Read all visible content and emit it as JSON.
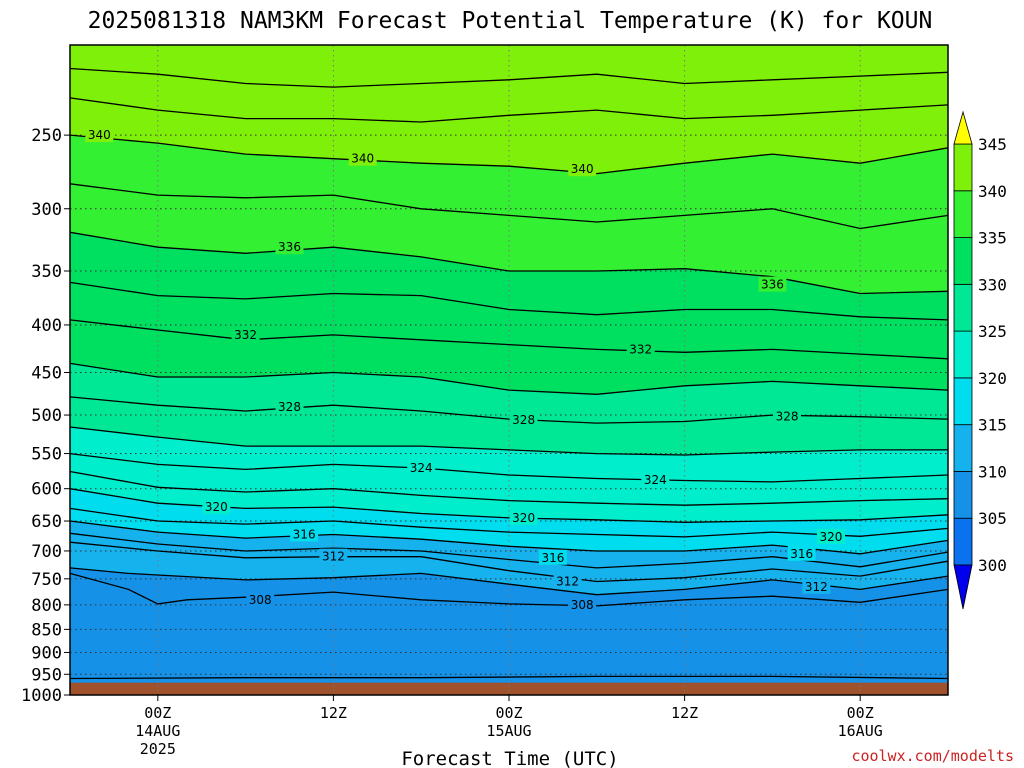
{
  "title": "2025081318 NAM3KM Forecast Potential Temperature (K) for KOUN",
  "credit": "coolwx.com/modelts",
  "colors": {
    "ground": "#a0522d",
    "levels": [
      "#0050ff",
      "#0a72ee",
      "#1592e8",
      "#16b2ee",
      "#00ddee",
      "#00eecc",
      "#00e895",
      "#00e060",
      "#33f033",
      "#7ef00a",
      "#aaff00",
      "#ffff00"
    ]
  },
  "chart_data": {
    "type": "heatmap",
    "title": "2025081318 NAM3KM Forecast Potential Temperature (K) for KOUN",
    "xlabel": "Forecast Time (UTC)",
    "ylabel": "",
    "x_unit": "forecast hour from 2025081318",
    "xlim": [
      0,
      60
    ],
    "ylim": [
      1000,
      200
    ],
    "y_scale": "log-pressure",
    "y_ticks": [
      "250",
      "300",
      "350",
      "400",
      "450",
      "500",
      "550",
      "600",
      "650",
      "700",
      "750",
      "800",
      "850",
      "900",
      "950",
      "1000"
    ],
    "x_ticks": [
      {
        "hour": 6,
        "label": "00Z",
        "date": "14AUG",
        "year": "2025"
      },
      {
        "hour": 18,
        "label": "12Z",
        "date": "",
        "year": ""
      },
      {
        "hour": 30,
        "label": "00Z",
        "date": "15AUG",
        "year": ""
      },
      {
        "hour": 42,
        "label": "12Z",
        "date": "",
        "year": ""
      },
      {
        "hour": 54,
        "label": "00Z",
        "date": "16AUG",
        "year": ""
      }
    ],
    "grid": true,
    "colorbar": {
      "levels": [
        300,
        305,
        310,
        315,
        320,
        325,
        330,
        335,
        340,
        345
      ],
      "labels": [
        "345",
        "340",
        "335",
        "330",
        "325",
        "320",
        "315",
        "310",
        "305",
        "300"
      ],
      "extend": "both",
      "placement": "right"
    },
    "contour_interval": 2,
    "ground_top_pressure": 970,
    "isentropes": [
      {
        "theta": 306,
        "points": [
          [
            0,
            960
          ],
          [
            12,
            958
          ],
          [
            24,
            958
          ],
          [
            36,
            955
          ],
          [
            48,
            955
          ],
          [
            60,
            960
          ]
        ]
      },
      {
        "theta": 308,
        "points": [
          [
            0,
            740
          ],
          [
            4,
            770
          ],
          [
            6,
            798
          ],
          [
            8,
            790
          ],
          [
            12,
            785
          ],
          [
            18,
            775
          ],
          [
            24,
            790
          ],
          [
            30,
            798
          ],
          [
            36,
            802
          ],
          [
            42,
            790
          ],
          [
            48,
            783
          ],
          [
            54,
            795
          ],
          [
            60,
            770
          ]
        ]
      },
      {
        "theta": 310,
        "points": [
          [
            0,
            730
          ],
          [
            4,
            740
          ],
          [
            12,
            752
          ],
          [
            18,
            748
          ],
          [
            24,
            740
          ],
          [
            30,
            760
          ],
          [
            36,
            780
          ],
          [
            42,
            770
          ],
          [
            48,
            752
          ],
          [
            54,
            770
          ],
          [
            60,
            745
          ]
        ]
      },
      {
        "theta": 312,
        "points": [
          [
            0,
            685
          ],
          [
            6,
            700
          ],
          [
            12,
            712
          ],
          [
            18,
            710
          ],
          [
            24,
            710
          ],
          [
            30,
            735
          ],
          [
            36,
            755
          ],
          [
            42,
            748
          ],
          [
            48,
            732
          ],
          [
            54,
            745
          ],
          [
            60,
            718
          ]
        ]
      },
      {
        "theta": 314,
        "points": [
          [
            0,
            670
          ],
          [
            6,
            688
          ],
          [
            12,
            700
          ],
          [
            18,
            695
          ],
          [
            24,
            700
          ],
          [
            30,
            715
          ],
          [
            36,
            730
          ],
          [
            42,
            722
          ],
          [
            48,
            710
          ],
          [
            54,
            728
          ],
          [
            60,
            702
          ]
        ]
      },
      {
        "theta": 316,
        "points": [
          [
            0,
            650
          ],
          [
            6,
            668
          ],
          [
            12,
            678
          ],
          [
            18,
            672
          ],
          [
            24,
            680
          ],
          [
            30,
            692
          ],
          [
            36,
            700
          ],
          [
            42,
            700
          ],
          [
            48,
            690
          ],
          [
            54,
            705
          ],
          [
            60,
            682
          ]
        ]
      },
      {
        "theta": 318,
        "points": [
          [
            0,
            630
          ],
          [
            6,
            650
          ],
          [
            12,
            655
          ],
          [
            18,
            650
          ],
          [
            24,
            660
          ],
          [
            30,
            668
          ],
          [
            36,
            672
          ],
          [
            42,
            676
          ],
          [
            48,
            668
          ],
          [
            54,
            675
          ],
          [
            60,
            662
          ]
        ]
      },
      {
        "theta": 320,
        "points": [
          [
            0,
            600
          ],
          [
            6,
            622
          ],
          [
            12,
            630
          ],
          [
            18,
            628
          ],
          [
            24,
            638
          ],
          [
            30,
            645
          ],
          [
            36,
            648
          ],
          [
            42,
            652
          ],
          [
            48,
            650
          ],
          [
            54,
            648
          ],
          [
            60,
            640
          ]
        ]
      },
      {
        "theta": 322,
        "points": [
          [
            0,
            575
          ],
          [
            6,
            598
          ],
          [
            12,
            605
          ],
          [
            18,
            600
          ],
          [
            24,
            610
          ],
          [
            30,
            618
          ],
          [
            36,
            622
          ],
          [
            42,
            625
          ],
          [
            48,
            622
          ],
          [
            54,
            618
          ],
          [
            60,
            615
          ]
        ]
      },
      {
        "theta": 324,
        "points": [
          [
            0,
            550
          ],
          [
            6,
            565
          ],
          [
            12,
            572
          ],
          [
            18,
            565
          ],
          [
            24,
            570
          ],
          [
            30,
            580
          ],
          [
            36,
            585
          ],
          [
            42,
            588
          ],
          [
            48,
            590
          ],
          [
            54,
            585
          ],
          [
            60,
            580
          ]
        ]
      },
      {
        "theta": 326,
        "points": [
          [
            0,
            515
          ],
          [
            6,
            528
          ],
          [
            12,
            540
          ],
          [
            18,
            540
          ],
          [
            24,
            540
          ],
          [
            30,
            545
          ],
          [
            36,
            550
          ],
          [
            42,
            552
          ],
          [
            48,
            548
          ],
          [
            54,
            545
          ],
          [
            60,
            545
          ]
        ]
      },
      {
        "theta": 328,
        "points": [
          [
            0,
            478
          ],
          [
            6,
            488
          ],
          [
            12,
            495
          ],
          [
            18,
            488
          ],
          [
            24,
            495
          ],
          [
            30,
            505
          ],
          [
            36,
            510
          ],
          [
            42,
            508
          ],
          [
            48,
            500
          ],
          [
            54,
            502
          ],
          [
            60,
            505
          ]
        ]
      },
      {
        "theta": 330,
        "points": [
          [
            0,
            440
          ],
          [
            6,
            455
          ],
          [
            12,
            455
          ],
          [
            18,
            450
          ],
          [
            24,
            455
          ],
          [
            30,
            470
          ],
          [
            36,
            475
          ],
          [
            42,
            465
          ],
          [
            48,
            460
          ],
          [
            54,
            465
          ],
          [
            60,
            470
          ]
        ]
      },
      {
        "theta": 332,
        "points": [
          [
            0,
            395
          ],
          [
            6,
            405
          ],
          [
            12,
            415
          ],
          [
            18,
            410
          ],
          [
            24,
            415
          ],
          [
            30,
            420
          ],
          [
            36,
            425
          ],
          [
            42,
            428
          ],
          [
            48,
            425
          ],
          [
            54,
            430
          ],
          [
            60,
            435
          ]
        ]
      },
      {
        "theta": 334,
        "points": [
          [
            0,
            360
          ],
          [
            6,
            372
          ],
          [
            12,
            375
          ],
          [
            18,
            370
          ],
          [
            24,
            372
          ],
          [
            30,
            385
          ],
          [
            36,
            390
          ],
          [
            42,
            385
          ],
          [
            48,
            385
          ],
          [
            54,
            392
          ],
          [
            60,
            395
          ]
        ]
      },
      {
        "theta": 336,
        "points": [
          [
            0,
            318
          ],
          [
            6,
            330
          ],
          [
            12,
            335
          ],
          [
            18,
            330
          ],
          [
            24,
            338
          ],
          [
            30,
            350
          ],
          [
            36,
            350
          ],
          [
            42,
            348
          ],
          [
            48,
            355
          ],
          [
            54,
            370
          ],
          [
            60,
            368
          ]
        ]
      },
      {
        "theta": 338,
        "points": [
          [
            0,
            282
          ],
          [
            6,
            290
          ],
          [
            12,
            292
          ],
          [
            18,
            290
          ],
          [
            24,
            300
          ],
          [
            30,
            305
          ],
          [
            36,
            310
          ],
          [
            42,
            305
          ],
          [
            48,
            300
          ],
          [
            54,
            315
          ],
          [
            60,
            305
          ]
        ]
      },
      {
        "theta": 340,
        "points": [
          [
            0,
            250
          ],
          [
            6,
            255
          ],
          [
            12,
            262
          ],
          [
            18,
            265
          ],
          [
            24,
            268
          ],
          [
            30,
            270
          ],
          [
            36,
            275
          ],
          [
            42,
            268
          ],
          [
            48,
            262
          ],
          [
            54,
            268
          ],
          [
            60,
            258
          ]
        ]
      },
      {
        "theta": 342,
        "points": [
          [
            0,
            228
          ],
          [
            6,
            235
          ],
          [
            12,
            240
          ],
          [
            18,
            240
          ],
          [
            24,
            242
          ],
          [
            30,
            238
          ],
          [
            36,
            235
          ],
          [
            42,
            240
          ],
          [
            48,
            238
          ],
          [
            54,
            235
          ],
          [
            60,
            232
          ]
        ]
      },
      {
        "theta": 344,
        "points": [
          [
            0,
            212
          ],
          [
            6,
            215
          ],
          [
            12,
            220
          ],
          [
            18,
            222
          ],
          [
            24,
            220
          ],
          [
            30,
            218
          ],
          [
            36,
            215
          ],
          [
            42,
            220
          ],
          [
            48,
            218
          ],
          [
            54,
            216
          ],
          [
            60,
            214
          ]
        ]
      }
    ],
    "contour_labels": [
      {
        "text": "340",
        "hour": 2,
        "p": 250
      },
      {
        "text": "340",
        "hour": 20,
        "p": 265
      },
      {
        "text": "340",
        "hour": 35,
        "p": 272
      },
      {
        "text": "336",
        "hour": 15,
        "p": 330
      },
      {
        "text": "336",
        "hour": 48,
        "p": 362
      },
      {
        "text": "332",
        "hour": 12,
        "p": 410
      },
      {
        "text": "332",
        "hour": 39,
        "p": 425
      },
      {
        "text": "328",
        "hour": 15,
        "p": 490
      },
      {
        "text": "328",
        "hour": 31,
        "p": 506
      },
      {
        "text": "328",
        "hour": 49,
        "p": 502
      },
      {
        "text": "324",
        "hour": 24,
        "p": 570
      },
      {
        "text": "324",
        "hour": 40,
        "p": 587
      },
      {
        "text": "320",
        "hour": 10,
        "p": 628
      },
      {
        "text": "320",
        "hour": 31,
        "p": 645
      },
      {
        "text": "320",
        "hour": 52,
        "p": 676
      },
      {
        "text": "316",
        "hour": 16,
        "p": 672
      },
      {
        "text": "316",
        "hour": 33,
        "p": 712
      },
      {
        "text": "316",
        "hour": 50,
        "p": 705
      },
      {
        "text": "312",
        "hour": 18,
        "p": 710
      },
      {
        "text": "312",
        "hour": 34,
        "p": 755
      },
      {
        "text": "312",
        "hour": 51,
        "p": 765
      },
      {
        "text": "308",
        "hour": 13,
        "p": 790
      },
      {
        "text": "308",
        "hour": 35,
        "p": 800
      }
    ]
  }
}
